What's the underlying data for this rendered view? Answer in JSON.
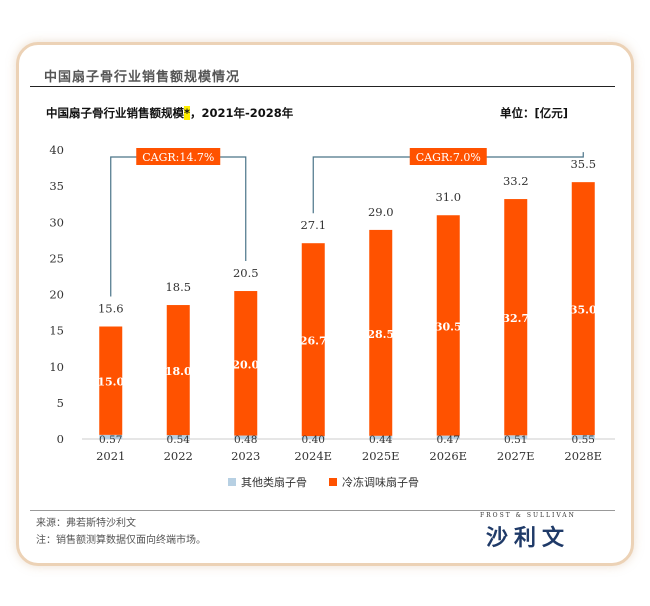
{
  "header": {
    "title": "中国扇子骨行业销售额规模情况"
  },
  "chart_header": {
    "subtitle": "中国扇子骨行业销售额规模",
    "star": "*",
    "subtitle_suffix": "，2021年-2028年",
    "unit": "单位：[亿元]"
  },
  "chart_data": {
    "type": "bar",
    "stacked": true,
    "categories": [
      "2021",
      "2022",
      "2023",
      "2024E",
      "2025E",
      "2026E",
      "2027E",
      "2028E"
    ],
    "series": [
      {
        "name": "其他类扇子骨",
        "color": "#b7d0e3",
        "values": [
          0.57,
          0.54,
          0.48,
          0.4,
          0.44,
          0.47,
          0.51,
          0.55
        ],
        "labels": [
          "0.57",
          "0.54",
          "0.48",
          "0.40",
          "0.44",
          "0.47",
          "0.51",
          "0.55"
        ]
      },
      {
        "name": "冷冻调味扇子骨",
        "color": "#ff5200",
        "values": [
          15.0,
          18.0,
          20.0,
          26.7,
          28.5,
          30.5,
          32.7,
          35.0
        ],
        "labels": [
          "15.0",
          "18.0",
          "20.0",
          "26.7",
          "28.5",
          "30.5",
          "32.7",
          "35.0"
        ]
      }
    ],
    "totals": [
      "15.6",
      "18.5",
      "20.5",
      "27.1",
      "29.0",
      "31.0",
      "33.2",
      "35.5"
    ],
    "ylim": [
      0,
      40
    ],
    "yticks": [
      "0",
      "5",
      "10",
      "15",
      "20",
      "25",
      "30",
      "35",
      "40"
    ],
    "grid": false,
    "legend_position": "bottom",
    "annotations": [
      {
        "label": "CAGR:14.7%",
        "from": "2021",
        "to": "2023"
      },
      {
        "label": "CAGR:7.0%",
        "from": "2024E",
        "to": "2028E"
      }
    ]
  },
  "footer": {
    "source": "来源：弗若斯特沙利文",
    "note": "注：销售额测算数据仅面向终端市场。",
    "brand_small": "FROST & SULLIVAN",
    "brand_big": "沙利文"
  }
}
